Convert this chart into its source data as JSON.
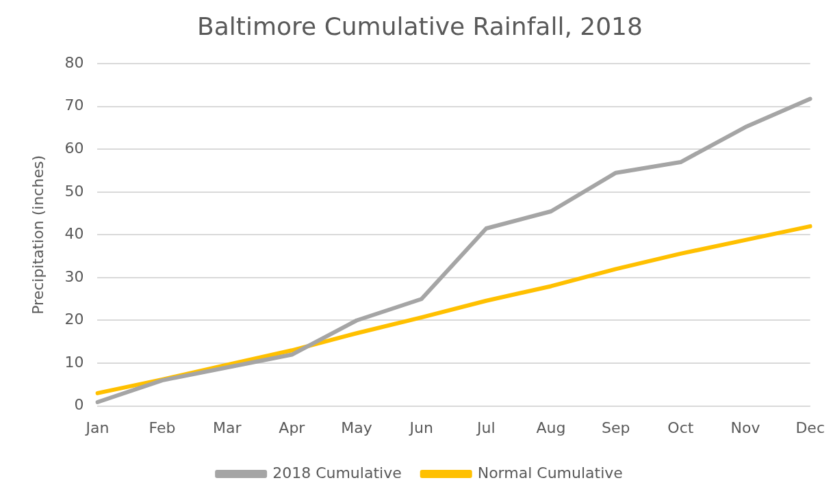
{
  "chart_data": {
    "type": "line",
    "title": "Baltimore Cumulative Rainfall, 2018",
    "ylabel": "Precipitation (inches)",
    "categories": [
      "Jan",
      "Feb",
      "Mar",
      "Apr",
      "May",
      "Jun",
      "Jul",
      "Aug",
      "Sep",
      "Oct",
      "Nov",
      "Dec"
    ],
    "series": [
      {
        "name": "2018 Cumulative",
        "color": "#a5a5a5",
        "values": [
          0.9,
          6,
          9,
          12,
          20,
          25,
          41.5,
          45.5,
          54.5,
          57,
          65.2,
          71.8
        ]
      },
      {
        "name": "Normal Cumulative",
        "color": "#ffc000",
        "values": [
          3,
          6.2,
          9.6,
          13,
          17,
          20.7,
          24.6,
          28,
          32,
          35.6,
          38.8,
          42
        ]
      }
    ],
    "ylim": [
      0,
      80
    ],
    "yticks": [
      0,
      10,
      20,
      30,
      40,
      50,
      60,
      70,
      80
    ],
    "grid": "y",
    "legend": "bottom",
    "marker": "none",
    "line_style": "solid"
  }
}
